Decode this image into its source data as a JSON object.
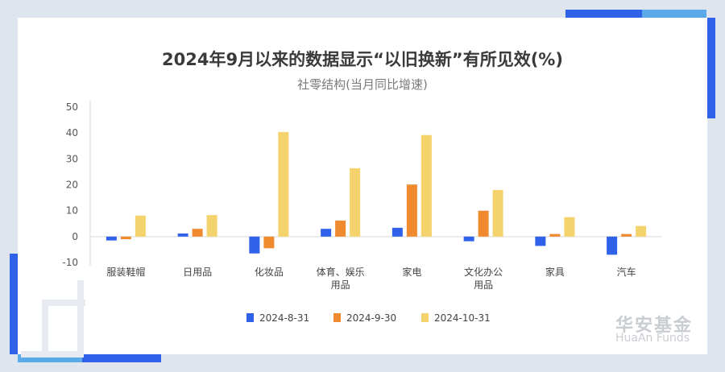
{
  "title": "2024年9月以来的数据显示“以旧换新”有所见效(%)",
  "subtitle": "社零结构(当月同比增速)",
  "watermark": {
    "cn": "华安基金",
    "en": "HuaAn Funds"
  },
  "colors": {
    "series": [
      "#2f62e8",
      "#ef8a2f",
      "#f4d26c"
    ],
    "accent": "#2f62e8",
    "accent_light": "#5aa9e8"
  },
  "chart_data": {
    "type": "bar",
    "categories": [
      "服装鞋帽",
      "日用品",
      "化妆品",
      "体育、娱乐用品",
      "家电",
      "文化办公用品",
      "家具",
      "汽车"
    ],
    "category_lines": [
      [
        "服装鞋帽"
      ],
      [
        "日用品"
      ],
      [
        "化妆品"
      ],
      [
        "体育、娱乐",
        "用品"
      ],
      [
        "家电"
      ],
      [
        "文化办公",
        "用品"
      ],
      [
        "家具"
      ],
      [
        "汽车"
      ]
    ],
    "series": [
      {
        "name": "2024-8-31",
        "values": [
          -1.5,
          1.2,
          -6.5,
          3.0,
          3.4,
          -1.8,
          -3.6,
          -7.0
        ]
      },
      {
        "name": "2024-9-30",
        "values": [
          -1.0,
          3.0,
          -4.5,
          6.2,
          20.1,
          10.0,
          1.0,
          1.0
        ]
      },
      {
        "name": "2024-10-31",
        "values": [
          8.1,
          8.3,
          40.4,
          26.4,
          39.2,
          18.0,
          7.5,
          4.1
        ]
      }
    ],
    "yticks": [
      50,
      40,
      30,
      20,
      10,
      0,
      -10
    ],
    "ylim": [
      -10,
      50
    ],
    "xlabel": "",
    "ylabel": "",
    "legend_position": "bottom-center"
  }
}
